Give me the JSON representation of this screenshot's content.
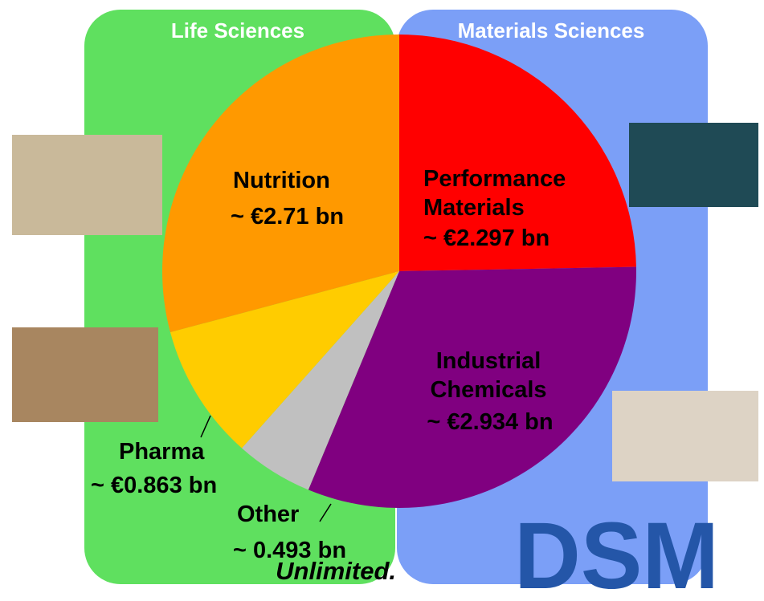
{
  "chart_data": {
    "type": "pie",
    "groups": [
      "Life Sciences",
      "Materials Sciences"
    ],
    "categories": [
      "Performance Materials",
      "Industrial Chemicals",
      "Other",
      "Pharma",
      "Nutrition"
    ],
    "values": [
      2.297,
      2.934,
      0.493,
      0.863,
      2.71
    ],
    "value_labels": [
      "~ €2.297 bn",
      "~ €2.934 bn",
      "~ 0.493 bn",
      "~ €0.863 bn",
      "~ €2.71 bn"
    ],
    "colors": [
      "#ff0000",
      "#800080",
      "#c0c0c0",
      "#ffcc00",
      "#ff9900"
    ],
    "tagline": "Unlimited.",
    "brand": "DSM"
  }
}
